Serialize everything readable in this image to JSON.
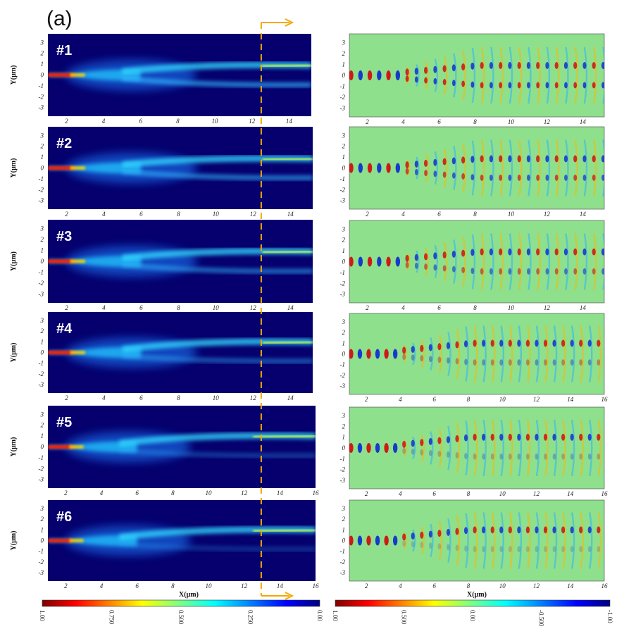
{
  "figure_label": "(a)",
  "chart_data": {
    "type": "heatmap",
    "panels": [
      "#1",
      "#2",
      "#3",
      "#4",
      "#5",
      "#6"
    ],
    "xlabel": "X(μm)",
    "ylabel": "Y(μm)",
    "y_ticks": [
      "3",
      "2",
      "1",
      "0",
      "-1",
      "-2",
      "-3"
    ],
    "x_ticks_short": [
      "2",
      "4",
      "6",
      "8",
      "10",
      "12",
      "14"
    ],
    "x_ticks_long": [
      "2",
      "4",
      "6",
      "8",
      "10",
      "12",
      "14",
      "16"
    ],
    "x_ticks_right": [
      "2",
      "4",
      "6",
      "8",
      "10",
      "12",
      "14"
    ],
    "x_ticks_right_long": [
      "2",
      "4",
      "6",
      "8",
      "10",
      "12",
      "14",
      "16"
    ],
    "dashed_line_x": 12.5,
    "colorbar_left": {
      "ticks": [
        "1.00",
        "0.750",
        "0.500",
        "0.250",
        "0.00"
      ],
      "colors": [
        "#7f0000",
        "#ff0000",
        "#ffff00",
        "#00ffff",
        "#0000ff",
        "#00007f"
      ]
    },
    "colorbar_right": {
      "ticks": [
        "1.00",
        "0.500",
        "0.00",
        "-0.500",
        "-1.00"
      ],
      "colors": [
        "#7f0000",
        "#ff0000",
        "#ffff00",
        "#00ffff",
        "#0000ff",
        "#00007f"
      ]
    },
    "accent_color": "#f5a800",
    "panel_bg": "#05006e"
  }
}
